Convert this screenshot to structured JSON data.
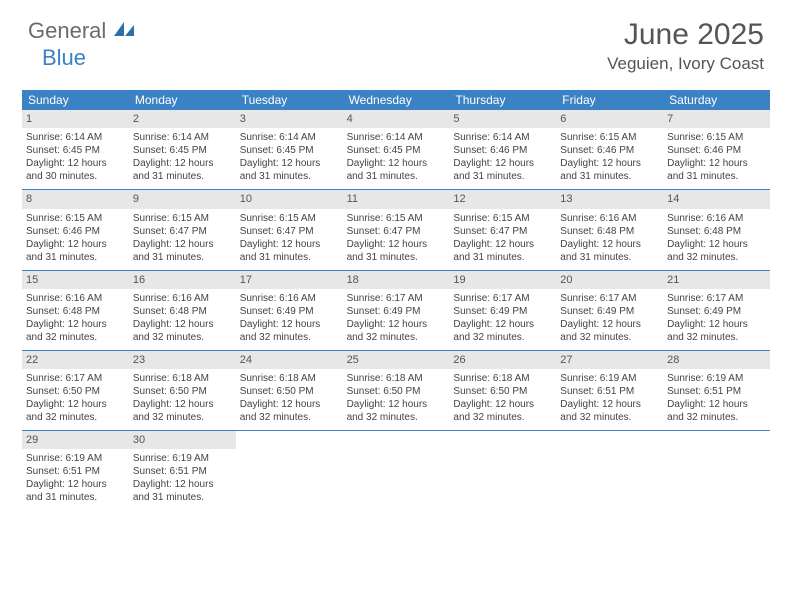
{
  "logo": {
    "text1": "General",
    "text2": "Blue"
  },
  "title": "June 2025",
  "location": "Veguien, Ivory Coast",
  "colors": {
    "header_bg": "#3b82c4",
    "daynum_bg": "#e7e7e7",
    "text": "#444444",
    "title_text": "#555555"
  },
  "typography": {
    "title_fontsize": 30,
    "location_fontsize": 17,
    "dayhead_fontsize": 12,
    "cell_fontsize": 10
  },
  "day_headers": [
    "Sunday",
    "Monday",
    "Tuesday",
    "Wednesday",
    "Thursday",
    "Friday",
    "Saturday"
  ],
  "weeks": [
    [
      {
        "n": "1",
        "sr": "Sunrise: 6:14 AM",
        "ss": "Sunset: 6:45 PM",
        "d1": "Daylight: 12 hours",
        "d2": "and 30 minutes."
      },
      {
        "n": "2",
        "sr": "Sunrise: 6:14 AM",
        "ss": "Sunset: 6:45 PM",
        "d1": "Daylight: 12 hours",
        "d2": "and 31 minutes."
      },
      {
        "n": "3",
        "sr": "Sunrise: 6:14 AM",
        "ss": "Sunset: 6:45 PM",
        "d1": "Daylight: 12 hours",
        "d2": "and 31 minutes."
      },
      {
        "n": "4",
        "sr": "Sunrise: 6:14 AM",
        "ss": "Sunset: 6:45 PM",
        "d1": "Daylight: 12 hours",
        "d2": "and 31 minutes."
      },
      {
        "n": "5",
        "sr": "Sunrise: 6:14 AM",
        "ss": "Sunset: 6:46 PM",
        "d1": "Daylight: 12 hours",
        "d2": "and 31 minutes."
      },
      {
        "n": "6",
        "sr": "Sunrise: 6:15 AM",
        "ss": "Sunset: 6:46 PM",
        "d1": "Daylight: 12 hours",
        "d2": "and 31 minutes."
      },
      {
        "n": "7",
        "sr": "Sunrise: 6:15 AM",
        "ss": "Sunset: 6:46 PM",
        "d1": "Daylight: 12 hours",
        "d2": "and 31 minutes."
      }
    ],
    [
      {
        "n": "8",
        "sr": "Sunrise: 6:15 AM",
        "ss": "Sunset: 6:46 PM",
        "d1": "Daylight: 12 hours",
        "d2": "and 31 minutes."
      },
      {
        "n": "9",
        "sr": "Sunrise: 6:15 AM",
        "ss": "Sunset: 6:47 PM",
        "d1": "Daylight: 12 hours",
        "d2": "and 31 minutes."
      },
      {
        "n": "10",
        "sr": "Sunrise: 6:15 AM",
        "ss": "Sunset: 6:47 PM",
        "d1": "Daylight: 12 hours",
        "d2": "and 31 minutes."
      },
      {
        "n": "11",
        "sr": "Sunrise: 6:15 AM",
        "ss": "Sunset: 6:47 PM",
        "d1": "Daylight: 12 hours",
        "d2": "and 31 minutes."
      },
      {
        "n": "12",
        "sr": "Sunrise: 6:15 AM",
        "ss": "Sunset: 6:47 PM",
        "d1": "Daylight: 12 hours",
        "d2": "and 31 minutes."
      },
      {
        "n": "13",
        "sr": "Sunrise: 6:16 AM",
        "ss": "Sunset: 6:48 PM",
        "d1": "Daylight: 12 hours",
        "d2": "and 31 minutes."
      },
      {
        "n": "14",
        "sr": "Sunrise: 6:16 AM",
        "ss": "Sunset: 6:48 PM",
        "d1": "Daylight: 12 hours",
        "d2": "and 32 minutes."
      }
    ],
    [
      {
        "n": "15",
        "sr": "Sunrise: 6:16 AM",
        "ss": "Sunset: 6:48 PM",
        "d1": "Daylight: 12 hours",
        "d2": "and 32 minutes."
      },
      {
        "n": "16",
        "sr": "Sunrise: 6:16 AM",
        "ss": "Sunset: 6:48 PM",
        "d1": "Daylight: 12 hours",
        "d2": "and 32 minutes."
      },
      {
        "n": "17",
        "sr": "Sunrise: 6:16 AM",
        "ss": "Sunset: 6:49 PM",
        "d1": "Daylight: 12 hours",
        "d2": "and 32 minutes."
      },
      {
        "n": "18",
        "sr": "Sunrise: 6:17 AM",
        "ss": "Sunset: 6:49 PM",
        "d1": "Daylight: 12 hours",
        "d2": "and 32 minutes."
      },
      {
        "n": "19",
        "sr": "Sunrise: 6:17 AM",
        "ss": "Sunset: 6:49 PM",
        "d1": "Daylight: 12 hours",
        "d2": "and 32 minutes."
      },
      {
        "n": "20",
        "sr": "Sunrise: 6:17 AM",
        "ss": "Sunset: 6:49 PM",
        "d1": "Daylight: 12 hours",
        "d2": "and 32 minutes."
      },
      {
        "n": "21",
        "sr": "Sunrise: 6:17 AM",
        "ss": "Sunset: 6:49 PM",
        "d1": "Daylight: 12 hours",
        "d2": "and 32 minutes."
      }
    ],
    [
      {
        "n": "22",
        "sr": "Sunrise: 6:17 AM",
        "ss": "Sunset: 6:50 PM",
        "d1": "Daylight: 12 hours",
        "d2": "and 32 minutes."
      },
      {
        "n": "23",
        "sr": "Sunrise: 6:18 AM",
        "ss": "Sunset: 6:50 PM",
        "d1": "Daylight: 12 hours",
        "d2": "and 32 minutes."
      },
      {
        "n": "24",
        "sr": "Sunrise: 6:18 AM",
        "ss": "Sunset: 6:50 PM",
        "d1": "Daylight: 12 hours",
        "d2": "and 32 minutes."
      },
      {
        "n": "25",
        "sr": "Sunrise: 6:18 AM",
        "ss": "Sunset: 6:50 PM",
        "d1": "Daylight: 12 hours",
        "d2": "and 32 minutes."
      },
      {
        "n": "26",
        "sr": "Sunrise: 6:18 AM",
        "ss": "Sunset: 6:50 PM",
        "d1": "Daylight: 12 hours",
        "d2": "and 32 minutes."
      },
      {
        "n": "27",
        "sr": "Sunrise: 6:19 AM",
        "ss": "Sunset: 6:51 PM",
        "d1": "Daylight: 12 hours",
        "d2": "and 32 minutes."
      },
      {
        "n": "28",
        "sr": "Sunrise: 6:19 AM",
        "ss": "Sunset: 6:51 PM",
        "d1": "Daylight: 12 hours",
        "d2": "and 32 minutes."
      }
    ],
    [
      {
        "n": "29",
        "sr": "Sunrise: 6:19 AM",
        "ss": "Sunset: 6:51 PM",
        "d1": "Daylight: 12 hours",
        "d2": "and 31 minutes."
      },
      {
        "n": "30",
        "sr": "Sunrise: 6:19 AM",
        "ss": "Sunset: 6:51 PM",
        "d1": "Daylight: 12 hours",
        "d2": "and 31 minutes."
      },
      null,
      null,
      null,
      null,
      null
    ]
  ]
}
